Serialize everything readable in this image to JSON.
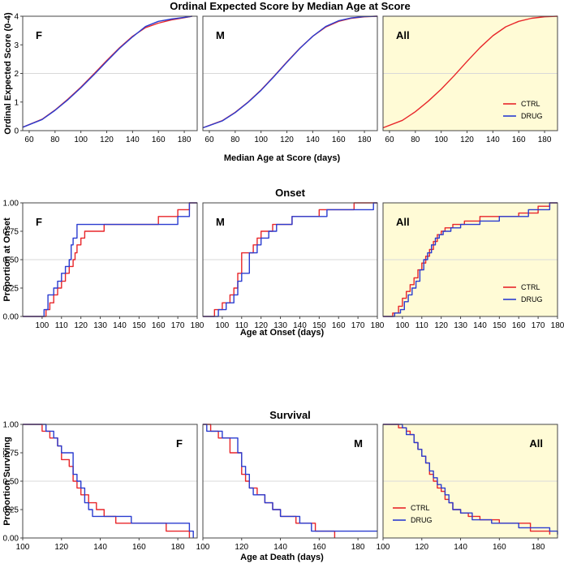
{
  "colors": {
    "ctrl": "#e8262a",
    "drug": "#2a3cd0",
    "all_bg": "#fffbd6",
    "grid": "#d9d9d9"
  },
  "legend": {
    "ctrl": "CTRL",
    "drug": "DRUG"
  },
  "chart_data": [
    {
      "id": "score",
      "type": "line",
      "title": "Ordinal Expected Score by Median Age at Score",
      "xlabel": "Median Age at Score (days)",
      "ylabel": "Ordinal Expected Score (0-4)",
      "xlim": [
        55,
        190
      ],
      "ylim": [
        0,
        4
      ],
      "xticks": [
        "60",
        "80",
        "100",
        "120",
        "140",
        "160",
        "180"
      ],
      "yticks": [
        "0",
        "1",
        "2",
        "3",
        "4"
      ],
      "gridline": 2,
      "panels": [
        {
          "label": "F",
          "series": [
            {
              "name": "CTRL",
              "x": [
                55,
                70,
                80,
                90,
                100,
                110,
                120,
                130,
                140,
                150,
                160,
                170,
                180,
                186
              ],
              "y": [
                0.12,
                0.4,
                0.72,
                1.1,
                1.52,
                1.98,
                2.45,
                2.9,
                3.3,
                3.6,
                3.76,
                3.87,
                3.95,
                4.0
              ]
            },
            {
              "name": "DRUG",
              "x": [
                55,
                70,
                80,
                90,
                100,
                110,
                120,
                130,
                140,
                150,
                160,
                170,
                180,
                186
              ],
              "y": [
                0.12,
                0.39,
                0.71,
                1.08,
                1.5,
                1.95,
                2.42,
                2.88,
                3.28,
                3.64,
                3.82,
                3.9,
                3.96,
                4.0
              ]
            }
          ]
        },
        {
          "label": "M",
          "series": [
            {
              "name": "CTRL",
              "x": [
                55,
                70,
                80,
                90,
                100,
                110,
                120,
                130,
                140,
                150,
                160,
                170,
                180,
                190
              ],
              "y": [
                0.1,
                0.35,
                0.64,
                1.0,
                1.42,
                1.9,
                2.4,
                2.88,
                3.3,
                3.62,
                3.82,
                3.93,
                3.98,
                4.0
              ]
            },
            {
              "name": "DRUG",
              "x": [
                55,
                70,
                80,
                90,
                100,
                110,
                120,
                130,
                140,
                150,
                160,
                170,
                180,
                190
              ],
              "y": [
                0.1,
                0.34,
                0.63,
                0.99,
                1.41,
                1.89,
                2.39,
                2.87,
                3.3,
                3.64,
                3.84,
                3.94,
                3.99,
                4.0
              ]
            }
          ]
        },
        {
          "label": "All",
          "series": [
            {
              "name": "CTRL",
              "x": [
                55,
                70,
                80,
                90,
                100,
                110,
                120,
                130,
                140,
                150,
                160,
                170,
                180,
                190
              ],
              "y": [
                0.1,
                0.36,
                0.66,
                1.03,
                1.45,
                1.92,
                2.42,
                2.9,
                3.32,
                3.63,
                3.82,
                3.93,
                3.98,
                4.0
              ]
            }
          ]
        }
      ]
    },
    {
      "id": "onset",
      "type": "line",
      "title": "Onset",
      "xlabel": "Age at Onset (days)",
      "ylabel": "Proportion at Onset",
      "xlim": [
        90,
        180
      ],
      "ylim": [
        0,
        1
      ],
      "xticks": [
        "100",
        "110",
        "120",
        "130",
        "140",
        "150",
        "160",
        "170",
        "180"
      ],
      "yticks": [
        "0.00",
        "0.25",
        "0.50",
        "0.75",
        "1.00"
      ],
      "gridline": 0.5,
      "panels": [
        {
          "label": "F",
          "series": [
            {
              "name": "CTRL",
              "x": [
                90,
                100,
                102,
                104,
                106,
                108,
                110,
                112,
                114,
                116,
                117,
                118,
                120,
                122,
                132,
                160,
                170,
                176
              ],
              "y": [
                0,
                0,
                0.06,
                0.12,
                0.19,
                0.25,
                0.31,
                0.38,
                0.44,
                0.5,
                0.56,
                0.63,
                0.69,
                0.75,
                0.81,
                0.88,
                0.94,
                1.0
              ]
            },
            {
              "name": "DRUG",
              "x": [
                90,
                100,
                101,
                103,
                106,
                108,
                110,
                112,
                114,
                115,
                116,
                118,
                122,
                148,
                170,
                176
              ],
              "y": [
                0,
                0,
                0.06,
                0.19,
                0.25,
                0.31,
                0.38,
                0.44,
                0.5,
                0.63,
                0.69,
                0.81,
                0.81,
                0.81,
                0.88,
                1.0
              ]
            }
          ]
        },
        {
          "label": "M",
          "series": [
            {
              "name": "CTRL",
              "x": [
                90,
                94,
                96,
                100,
                104,
                106,
                108,
                110,
                116,
                118,
                120,
                122,
                126,
                130,
                136,
                150,
                168
              ],
              "y": [
                0,
                0,
                0.06,
                0.12,
                0.19,
                0.25,
                0.38,
                0.56,
                0.63,
                0.69,
                0.75,
                0.75,
                0.81,
                0.81,
                0.88,
                0.94,
                1.0
              ]
            },
            {
              "name": "DRUG",
              "x": [
                90,
                95,
                98,
                102,
                106,
                108,
                110,
                114,
                118,
                120,
                124,
                128,
                132,
                136,
                154,
                178
              ],
              "y": [
                0,
                0,
                0.06,
                0.12,
                0.19,
                0.31,
                0.38,
                0.56,
                0.63,
                0.69,
                0.75,
                0.81,
                0.81,
                0.88,
                0.94,
                1.0
              ]
            }
          ]
        },
        {
          "label": "All",
          "series": [
            {
              "name": "CTRL",
              "x": [
                90,
                95,
                98,
                100,
                102,
                104,
                106,
                108,
                110,
                112,
                114,
                116,
                118,
                120,
                122,
                126,
                132,
                140,
                160,
                170,
                176
              ],
              "y": [
                0,
                0.03,
                0.09,
                0.16,
                0.22,
                0.28,
                0.34,
                0.41,
                0.47,
                0.53,
                0.59,
                0.66,
                0.72,
                0.75,
                0.78,
                0.81,
                0.84,
                0.88,
                0.91,
                0.97,
                1.0
              ]
            },
            {
              "name": "DRUG",
              "x": [
                90,
                96,
                99,
                101,
                103,
                105,
                107,
                109,
                111,
                113,
                115,
                117,
                119,
                121,
                125,
                130,
                140,
                150,
                165,
                176
              ],
              "y": [
                0,
                0.03,
                0.06,
                0.13,
                0.19,
                0.25,
                0.31,
                0.41,
                0.5,
                0.56,
                0.63,
                0.69,
                0.72,
                0.75,
                0.78,
                0.81,
                0.84,
                0.88,
                0.94,
                1.0
              ]
            }
          ]
        }
      ]
    },
    {
      "id": "survival",
      "type": "line",
      "title": "Survival",
      "xlabel": "Age at Death (days)",
      "ylabel": "Proportion Surviving",
      "xlim": [
        100,
        190
      ],
      "ylim": [
        0,
        1
      ],
      "xticks": [
        "100",
        "120",
        "140",
        "160",
        "180"
      ],
      "yticks": [
        "0.00",
        "0.25",
        "0.50",
        "0.75",
        "1.00"
      ],
      "gridline": 0.5,
      "panels": [
        {
          "label": "F",
          "series": [
            {
              "name": "CTRL",
              "x": [
                100,
                110,
                114,
                118,
                120,
                124,
                126,
                128,
                130,
                134,
                138,
                142,
                148,
                156,
                174,
                186
              ],
              "y": [
                1,
                0.94,
                0.88,
                0.81,
                0.69,
                0.63,
                0.5,
                0.44,
                0.38,
                0.31,
                0.25,
                0.19,
                0.13,
                0.13,
                0.06,
                0
              ]
            },
            {
              "name": "DRUG",
              "x": [
                100,
                112,
                116,
                118,
                120,
                126,
                128,
                130,
                132,
                134,
                136,
                140,
                144,
                156,
                186,
                188
              ],
              "y": [
                1,
                0.94,
                0.88,
                0.81,
                0.75,
                0.56,
                0.5,
                0.44,
                0.31,
                0.25,
                0.19,
                0.19,
                0.19,
                0.13,
                0.06,
                0
              ]
            }
          ]
        },
        {
          "label": "M",
          "series": [
            {
              "name": "CTRL",
              "x": [
                100,
                104,
                108,
                114,
                120,
                122,
                124,
                128,
                132,
                136,
                140,
                148,
                158,
                168
              ],
              "y": [
                1,
                0.94,
                0.88,
                0.75,
                0.56,
                0.5,
                0.44,
                0.38,
                0.31,
                0.25,
                0.19,
                0.13,
                0.06,
                0
              ]
            },
            {
              "name": "DRUG",
              "x": [
                100,
                102,
                110,
                118,
                120,
                122,
                124,
                126,
                132,
                136,
                140,
                150,
                156,
                160,
                190
              ],
              "y": [
                1,
                0.94,
                0.88,
                0.75,
                0.63,
                0.56,
                0.44,
                0.38,
                0.31,
                0.25,
                0.19,
                0.13,
                0.06,
                0.06,
                0.06
              ]
            }
          ]
        },
        {
          "label": "All",
          "series": [
            {
              "name": "CTRL",
              "x": [
                100,
                108,
                112,
                114,
                116,
                118,
                120,
                122,
                124,
                126,
                128,
                130,
                132,
                134,
                136,
                140,
                144,
                150,
                160,
                176,
                186
              ],
              "y": [
                1,
                0.97,
                0.94,
                0.91,
                0.84,
                0.78,
                0.72,
                0.66,
                0.56,
                0.5,
                0.44,
                0.41,
                0.34,
                0.31,
                0.25,
                0.22,
                0.19,
                0.16,
                0.13,
                0.06,
                0.03
              ]
            },
            {
              "name": "DRUG",
              "x": [
                100,
                110,
                112,
                116,
                118,
                120,
                122,
                124,
                126,
                128,
                130,
                132,
                134,
                136,
                140,
                146,
                156,
                170,
                186,
                190
              ],
              "y": [
                1,
                0.97,
                0.91,
                0.84,
                0.78,
                0.72,
                0.66,
                0.59,
                0.53,
                0.47,
                0.44,
                0.38,
                0.31,
                0.25,
                0.22,
                0.16,
                0.13,
                0.09,
                0.06,
                0.03
              ]
            }
          ]
        }
      ]
    }
  ]
}
